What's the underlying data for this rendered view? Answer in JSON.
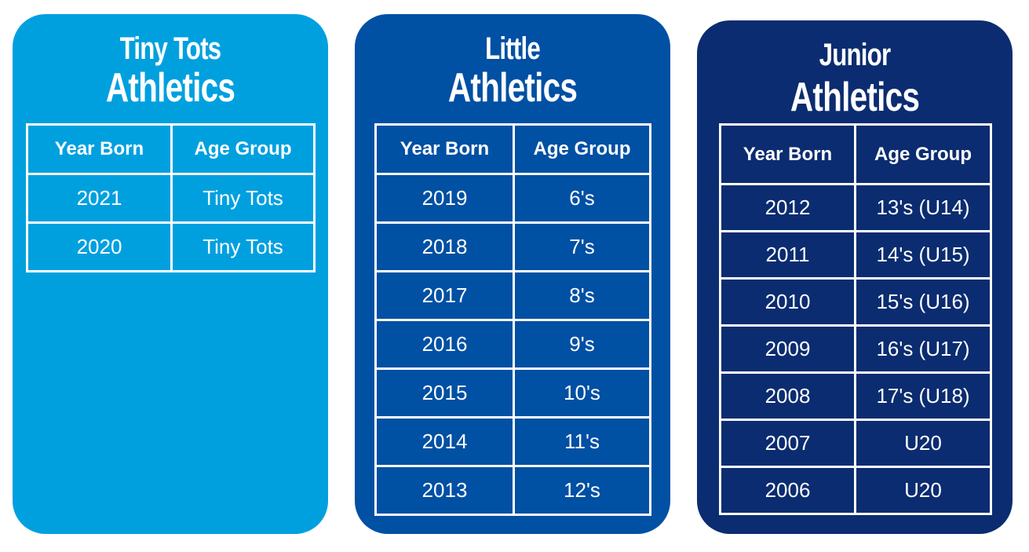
{
  "cards": [
    {
      "title_line1": "Tiny Tots",
      "title_line2": "Athletics",
      "header_year": "Year Born",
      "header_age": "Age Group",
      "rows": [
        {
          "year": "2021",
          "age": "Tiny Tots"
        },
        {
          "year": "2020",
          "age": "Tiny Tots"
        }
      ],
      "color": "#00a0df"
    },
    {
      "title_line1": "Little",
      "title_line2": "Athletics",
      "header_year": "Year Born",
      "header_age": "Age Group",
      "rows": [
        {
          "year": "2019",
          "age": "6's"
        },
        {
          "year": "2018",
          "age": "7's"
        },
        {
          "year": "2017",
          "age": "8's"
        },
        {
          "year": "2016",
          "age": "9's"
        },
        {
          "year": "2015",
          "age": "10's"
        },
        {
          "year": "2014",
          "age": "11's"
        },
        {
          "year": "2013",
          "age": "12's"
        }
      ],
      "color": "#0050a3"
    },
    {
      "title_line1": "Junior",
      "title_line2": "Athletics",
      "header_year": "Year Born",
      "header_age": "Age Group",
      "rows": [
        {
          "year": "2012",
          "age": "13's (U14)"
        },
        {
          "year": "2011",
          "age": "14's (U15)"
        },
        {
          "year": "2010",
          "age": "15's (U16)"
        },
        {
          "year": "2009",
          "age": "16's (U17)"
        },
        {
          "year": "2008",
          "age": "17's (U18)"
        },
        {
          "year": "2007",
          "age": "U20"
        },
        {
          "year": "2006",
          "age": "U20"
        }
      ],
      "color": "#0b2c70"
    }
  ]
}
